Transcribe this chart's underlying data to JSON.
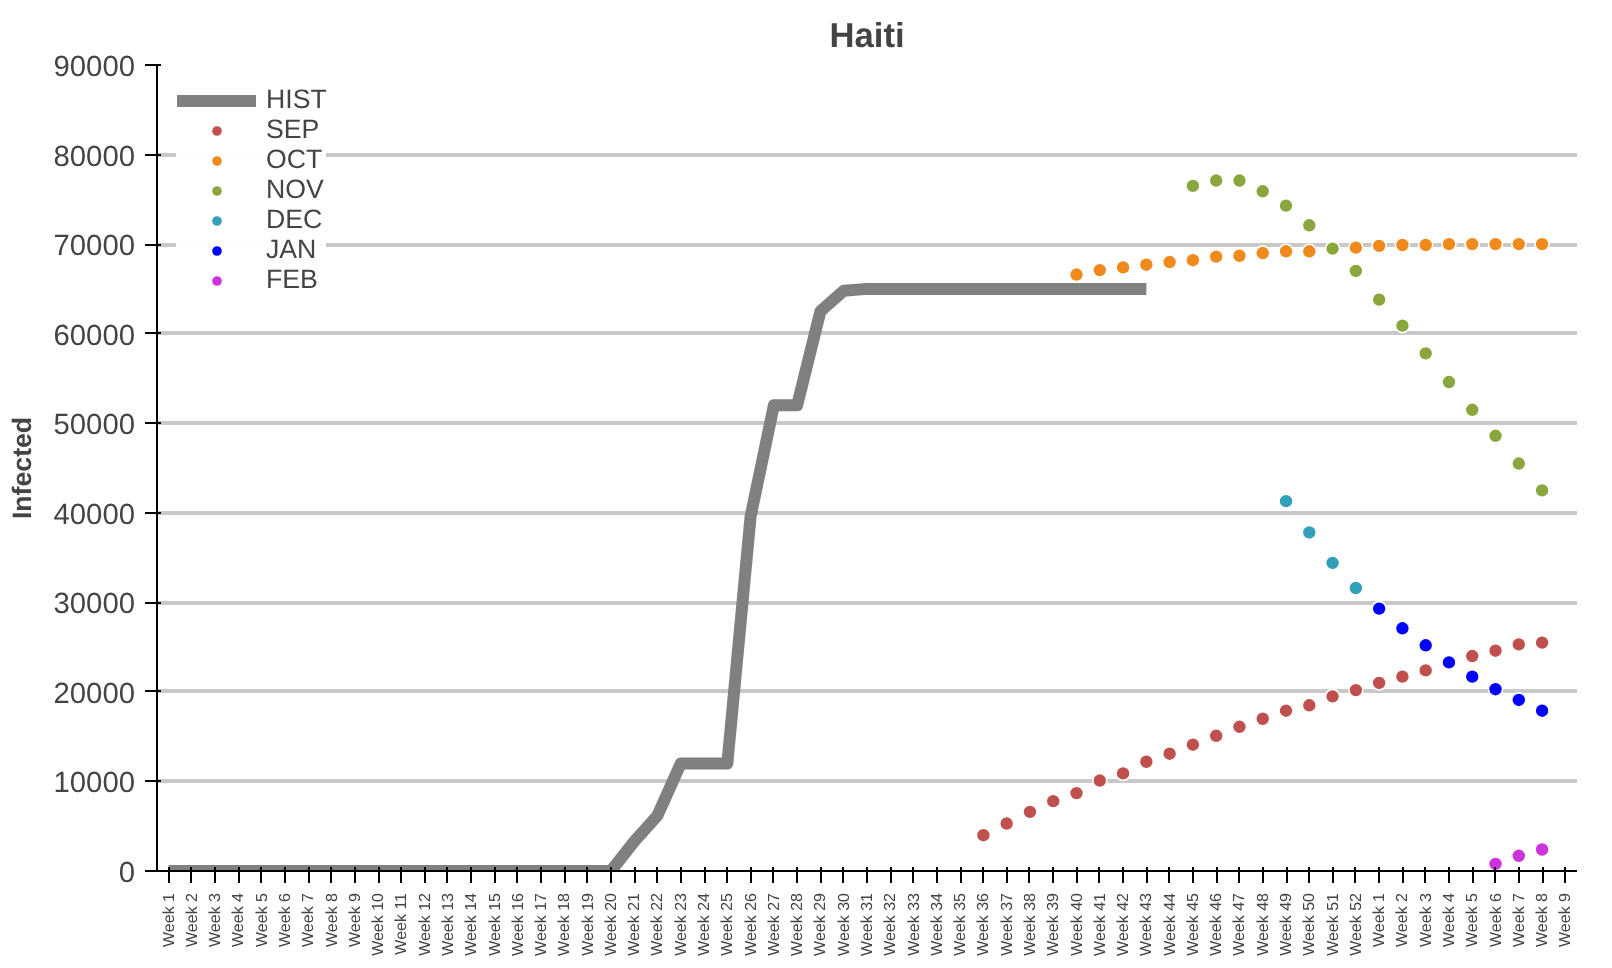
{
  "chart_data": {
    "type": "line",
    "title": "Haiti",
    "ylabel": "Infected",
    "categories": [
      "Week 1",
      "Week 2",
      "Week 3",
      "Week 4",
      "Week 5",
      "Week 6",
      "Week 7",
      "Week 8",
      "Week 9",
      "Week 10",
      "Week 11",
      "Week 12",
      "Week 13",
      "Week 14",
      "Week 15",
      "Week 16",
      "Week 17",
      "Week 18",
      "Week 19",
      "Week 20",
      "Week 21",
      "Week 22",
      "Week 23",
      "Week 24",
      "Week 25",
      "Week 26",
      "Week 27",
      "Week 28",
      "Week 29",
      "Week 30",
      "Week 31",
      "Week 32",
      "Week 33",
      "Week 34",
      "Week 35",
      "Week 36",
      "Week 37",
      "Week 38",
      "Week 39",
      "Week 40",
      "Week 41",
      "Week 42",
      "Week 43",
      "Week 44",
      "Week 45",
      "Week 46",
      "Week 47",
      "Week 48",
      "Week 49",
      "Week 50",
      "Week 51",
      "Week 52",
      "Week 1",
      "Week 2",
      "Week 3",
      "Week 4",
      "Week 5",
      "Week 6",
      "Week 7",
      "Week 8",
      "Week 9"
    ],
    "ylim": [
      0,
      90000
    ],
    "yticks": [
      0,
      10000,
      20000,
      30000,
      40000,
      50000,
      60000,
      70000,
      80000,
      90000
    ],
    "grid": "y",
    "legend": "top left",
    "series": [
      {
        "name": "HIST",
        "color": "#808080",
        "marker": "none",
        "values": [
          0,
          0,
          0,
          0,
          0,
          0,
          0,
          0,
          0,
          0,
          0,
          0,
          0,
          0,
          0,
          0,
          0,
          0,
          0,
          0,
          3300,
          6200,
          12000,
          12000,
          12000,
          39600,
          52000,
          52000,
          62500,
          64800,
          65000,
          65000,
          65000,
          65000,
          65000,
          65000,
          65000,
          65000,
          65000,
          65000,
          65000,
          65000,
          65000,
          null,
          null,
          null,
          null,
          null,
          null,
          null,
          null,
          null,
          null,
          null,
          null,
          null,
          null,
          null,
          null,
          null,
          null
        ]
      },
      {
        "name": "SEP",
        "type": "scatter",
        "color": "#c0504d",
        "marker": "circle",
        "values": [
          null,
          null,
          null,
          null,
          null,
          null,
          null,
          null,
          null,
          null,
          null,
          null,
          null,
          null,
          null,
          null,
          null,
          null,
          null,
          null,
          null,
          null,
          null,
          null,
          null,
          null,
          null,
          null,
          null,
          null,
          null,
          null,
          null,
          null,
          null,
          4000,
          5300,
          6600,
          7800,
          8700,
          10100,
          10900,
          12200,
          13100,
          14100,
          15100,
          16100,
          17000,
          17900,
          18500,
          19500,
          20200,
          21000,
          21700,
          22400,
          null,
          24000,
          24600,
          25300,
          25500,
          null
        ]
      },
      {
        "name": "OCT",
        "type": "scatter",
        "color": "#f08a1c",
        "marker": "circle",
        "values": [
          null,
          null,
          null,
          null,
          null,
          null,
          null,
          null,
          null,
          null,
          null,
          null,
          null,
          null,
          null,
          null,
          null,
          null,
          null,
          null,
          null,
          null,
          null,
          null,
          null,
          null,
          null,
          null,
          null,
          null,
          null,
          null,
          null,
          null,
          null,
          null,
          null,
          null,
          null,
          66600,
          67100,
          67400,
          67700,
          68000,
          68200,
          68600,
          68700,
          69000,
          69200,
          69200,
          null,
          69600,
          69800,
          69900,
          69900,
          70000,
          70000,
          70000,
          70000,
          70000,
          null
        ]
      },
      {
        "name": "NOV",
        "type": "scatter",
        "color": "#8aa63c",
        "marker": "circle",
        "values": [
          null,
          null,
          null,
          null,
          null,
          null,
          null,
          null,
          null,
          null,
          null,
          null,
          null,
          null,
          null,
          null,
          null,
          null,
          null,
          null,
          null,
          null,
          null,
          null,
          null,
          null,
          null,
          null,
          null,
          null,
          null,
          null,
          null,
          null,
          null,
          null,
          null,
          null,
          null,
          null,
          null,
          null,
          null,
          null,
          76500,
          77100,
          77100,
          75900,
          74300,
          72100,
          69500,
          67000,
          63800,
          60900,
          57800,
          54600,
          51500,
          48600,
          45500,
          42500,
          null
        ]
      },
      {
        "name": "DEC",
        "type": "scatter",
        "color": "#31a0b8",
        "marker": "circle",
        "values": [
          null,
          null,
          null,
          null,
          null,
          null,
          null,
          null,
          null,
          null,
          null,
          null,
          null,
          null,
          null,
          null,
          null,
          null,
          null,
          null,
          null,
          null,
          null,
          null,
          null,
          null,
          null,
          null,
          null,
          null,
          null,
          null,
          null,
          null,
          null,
          null,
          null,
          null,
          null,
          null,
          null,
          null,
          null,
          null,
          null,
          null,
          null,
          null,
          41300,
          37800,
          34400,
          31600,
          null,
          null,
          null,
          null,
          null,
          null,
          null,
          null,
          null
        ]
      },
      {
        "name": "JAN",
        "type": "scatter",
        "color": "#0000ff",
        "marker": "circle",
        "values": [
          null,
          null,
          null,
          null,
          null,
          null,
          null,
          null,
          null,
          null,
          null,
          null,
          null,
          null,
          null,
          null,
          null,
          null,
          null,
          null,
          null,
          null,
          null,
          null,
          null,
          null,
          null,
          null,
          null,
          null,
          null,
          null,
          null,
          null,
          null,
          null,
          null,
          null,
          null,
          null,
          null,
          null,
          null,
          null,
          null,
          null,
          null,
          null,
          null,
          null,
          null,
          null,
          29300,
          27100,
          25200,
          23300,
          21700,
          20300,
          19100,
          17900,
          null
        ]
      },
      {
        "name": "FEB",
        "type": "scatter",
        "color": "#cc33dd",
        "marker": "circle",
        "values": [
          null,
          null,
          null,
          null,
          null,
          null,
          null,
          null,
          null,
          null,
          null,
          null,
          null,
          null,
          null,
          null,
          null,
          null,
          null,
          null,
          null,
          null,
          null,
          null,
          null,
          null,
          null,
          null,
          null,
          null,
          null,
          null,
          null,
          null,
          null,
          null,
          null,
          null,
          null,
          null,
          null,
          null,
          null,
          null,
          null,
          null,
          null,
          null,
          null,
          null,
          null,
          null,
          null,
          null,
          null,
          null,
          null,
          800,
          1700,
          2400,
          null
        ]
      }
    ]
  }
}
